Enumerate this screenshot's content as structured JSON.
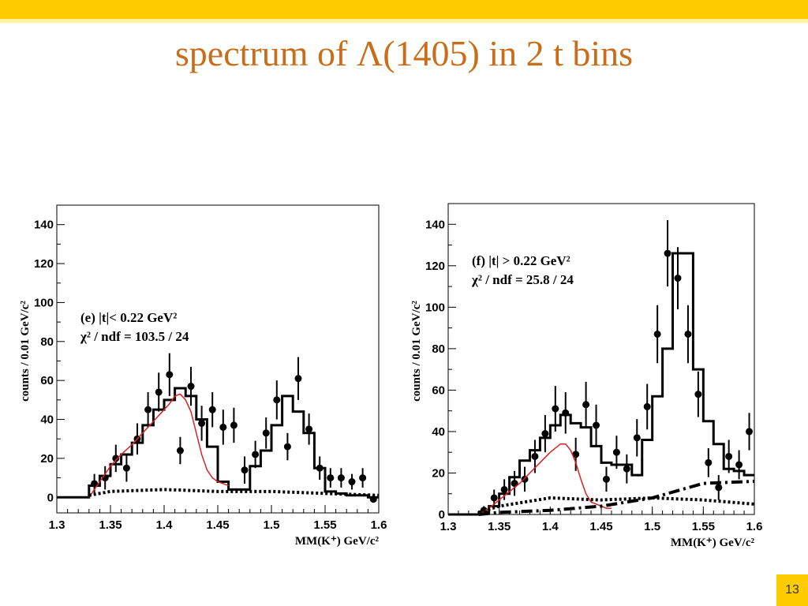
{
  "slide": {
    "title": "spectrum of Λ(1405) in 2 t bins",
    "page_number": "13",
    "colors": {
      "top_bar": "#ffcc00",
      "title": "#c86e1a",
      "fit_curve": "#e02020"
    }
  },
  "chart_data": [
    {
      "type": "line",
      "panel": "left",
      "xlabel": "MM(K⁺)  GeV/c²",
      "ylabel": "counts / 0.01 GeV/c²",
      "xlim": [
        1.3,
        1.6
      ],
      "ylim": [
        -8,
        150
      ],
      "xticks": [
        1.3,
        1.35,
        1.4,
        1.45,
        1.5,
        1.55,
        1.6
      ],
      "xtick_labels": [
        "1.3",
        "1.35",
        "1.4",
        "1.45",
        "1.5",
        "1.55",
        "1.6"
      ],
      "yticks": [
        0,
        20,
        40,
        60,
        80,
        100,
        120,
        140
      ],
      "ytick_labels": [
        "0",
        "20",
        "40",
        "60",
        "80",
        "100",
        "120",
        "140"
      ],
      "annotation_line1": "(e)  |t|< 0.22 GeV²",
      "annotation_line2": "χ² / ndf =  103.5 / 24",
      "grid": false,
      "series": [
        {
          "kind": "data-points",
          "x": [
            1.335,
            1.345,
            1.355,
            1.365,
            1.375,
            1.385,
            1.395,
            1.405,
            1.415,
            1.425,
            1.435,
            1.445,
            1.455,
            1.465,
            1.475,
            1.485,
            1.495,
            1.505,
            1.515,
            1.525,
            1.535,
            1.545,
            1.555,
            1.565,
            1.575,
            1.585,
            1.595
          ],
          "y": [
            7,
            10,
            20,
            15,
            30,
            45,
            54,
            63,
            24,
            57,
            38,
            45,
            36,
            37,
            14,
            22,
            33,
            50,
            26,
            61,
            35,
            15,
            10,
            10,
            8,
            10,
            -1
          ],
          "err": [
            5,
            6,
            7,
            7,
            8,
            9,
            10,
            11,
            7,
            10,
            9,
            9,
            9,
            9,
            7,
            7,
            8,
            10,
            7,
            11,
            8,
            6,
            5,
            5,
            4,
            5,
            1
          ]
        },
        {
          "kind": "histogram",
          "bin_edges": [
            1.3,
            1.31,
            1.32,
            1.33,
            1.34,
            1.35,
            1.36,
            1.37,
            1.38,
            1.39,
            1.4,
            1.41,
            1.42,
            1.43,
            1.44,
            1.45,
            1.46,
            1.47,
            1.48,
            1.49,
            1.5,
            1.51,
            1.52,
            1.53,
            1.54,
            1.55,
            1.56,
            1.57,
            1.58,
            1.59,
            1.6
          ],
          "values": [
            0,
            0,
            0,
            6,
            11,
            17,
            22,
            28,
            37,
            45,
            50,
            56,
            52,
            40,
            26,
            8,
            4,
            4,
            16,
            24,
            37,
            52,
            44,
            33,
            15,
            3,
            2,
            1,
            1,
            0
          ]
        },
        {
          "kind": "fit-curve",
          "x": [
            1.33,
            1.34,
            1.35,
            1.36,
            1.37,
            1.38,
            1.39,
            1.4,
            1.405,
            1.41,
            1.415,
            1.42,
            1.425,
            1.43,
            1.435,
            1.44,
            1.445,
            1.45,
            1.455,
            1.46
          ],
          "y": [
            0,
            8,
            16,
            22,
            27,
            33,
            39,
            45,
            48,
            52,
            53,
            50,
            44,
            33,
            22,
            14,
            10,
            8,
            7,
            6
          ]
        },
        {
          "kind": "background-dotted",
          "x": [
            1.33,
            1.35,
            1.4,
            1.45,
            1.5,
            1.55,
            1.6
          ],
          "y": [
            1,
            3,
            4,
            3,
            3,
            2,
            1
          ]
        }
      ]
    },
    {
      "type": "line",
      "panel": "right",
      "xlabel": "MM(K⁺)  GeV/c²",
      "ylabel": "counts / 0.01 GeV/c²",
      "xlim": [
        1.3,
        1.6
      ],
      "ylim": [
        0,
        150
      ],
      "xticks": [
        1.3,
        1.35,
        1.4,
        1.45,
        1.5,
        1.55,
        1.6
      ],
      "xtick_labels": [
        "1.3",
        "1.35",
        "1.4",
        "1.45",
        "1.5",
        "1.55",
        "1.6"
      ],
      "yticks": [
        0,
        20,
        40,
        60,
        80,
        100,
        120,
        140
      ],
      "ytick_labels": [
        "0",
        "20",
        "40",
        "60",
        "80",
        "100",
        "120",
        "140"
      ],
      "annotation_line1": "(f)  |t| > 0.22 GeV²",
      "annotation_line2": "χ² / ndf =  25.8 / 24",
      "grid": false,
      "series": [
        {
          "kind": "data-points",
          "x": [
            1.335,
            1.345,
            1.355,
            1.365,
            1.375,
            1.385,
            1.395,
            1.405,
            1.415,
            1.425,
            1.435,
            1.445,
            1.455,
            1.465,
            1.475,
            1.485,
            1.495,
            1.505,
            1.515,
            1.525,
            1.535,
            1.545,
            1.555,
            1.565,
            1.575,
            1.585,
            1.595
          ],
          "y": [
            2,
            8,
            12,
            15,
            17,
            28,
            39,
            51,
            49,
            29,
            53,
            43,
            17,
            30,
            22,
            37,
            52,
            87,
            126,
            114,
            87,
            58,
            25,
            13,
            28,
            24,
            40
          ],
          "err": [
            2,
            4,
            5,
            6,
            6,
            8,
            9,
            11,
            10,
            8,
            11,
            10,
            6,
            8,
            7,
            9,
            11,
            14,
            16,
            15,
            14,
            11,
            7,
            6,
            8,
            7,
            9
          ]
        },
        {
          "kind": "histogram",
          "bin_edges": [
            1.3,
            1.31,
            1.32,
            1.33,
            1.34,
            1.35,
            1.36,
            1.37,
            1.38,
            1.39,
            1.4,
            1.41,
            1.42,
            1.43,
            1.44,
            1.45,
            1.46,
            1.47,
            1.48,
            1.49,
            1.5,
            1.51,
            1.52,
            1.53,
            1.54,
            1.55,
            1.56,
            1.57,
            1.58,
            1.59,
            1.6
          ],
          "values": [
            0,
            0,
            0,
            1,
            4,
            10,
            18,
            26,
            31,
            37,
            43,
            48,
            44,
            42,
            33,
            25,
            24,
            24,
            19,
            36,
            57,
            80,
            126,
            126,
            70,
            45,
            34,
            22,
            21,
            19
          ]
        },
        {
          "kind": "fit-curve",
          "x": [
            1.33,
            1.34,
            1.35,
            1.36,
            1.37,
            1.38,
            1.39,
            1.4,
            1.405,
            1.41,
            1.415,
            1.42,
            1.425,
            1.43,
            1.435,
            1.44,
            1.445,
            1.45,
            1.455,
            1.46
          ],
          "y": [
            0,
            3,
            7,
            11,
            15,
            20,
            25,
            30,
            32,
            34,
            34,
            31,
            25,
            17,
            10,
            6,
            5,
            4,
            3,
            3
          ]
        },
        {
          "kind": "background-dotted",
          "x": [
            1.33,
            1.35,
            1.4,
            1.45,
            1.5,
            1.55,
            1.6
          ],
          "y": [
            1,
            4,
            8,
            7,
            8,
            7,
            5
          ]
        },
        {
          "kind": "background-dashdot",
          "x": [
            1.33,
            1.35,
            1.4,
            1.45,
            1.5,
            1.55,
            1.6
          ],
          "y": [
            0,
            1,
            2,
            4,
            8,
            15,
            16
          ]
        }
      ]
    }
  ]
}
